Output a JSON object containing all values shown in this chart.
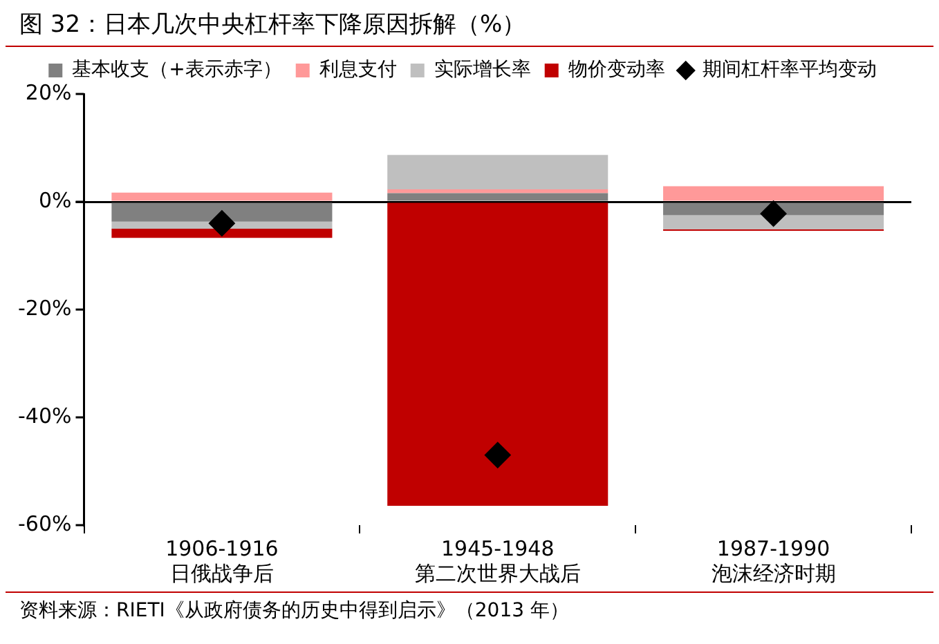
{
  "chart_data": {
    "type": "bar",
    "title": "图 32：日本几次中央杠杆率下降原因拆解（%）",
    "categories": [
      "1906-1916\n日俄战争后",
      "1945-1948\n第二次世界大战后",
      "1987-1990\n泡沫经济时期"
    ],
    "stacked": true,
    "series": [
      {
        "name": "基本收支（+表示赤字）",
        "color": "#808080",
        "values": [
          -3.7,
          1.6,
          -2.5
        ]
      },
      {
        "name": "利息支付",
        "color": "#ff9999",
        "values": [
          1.7,
          0.7,
          2.9
        ]
      },
      {
        "name": "实际增长率",
        "color": "#bfbfbf",
        "values": [
          -1.3,
          6.4,
          -2.6
        ]
      },
      {
        "name": "物价变动率",
        "color": "#c00000",
        "values": [
          -1.7,
          -56.4,
          -0.3
        ]
      },
      {
        "name": "期间杠杆率平均变动",
        "type": "scatter",
        "color": "#000000",
        "marker": "diamond",
        "x": [
          "1906-1916\n日俄战争后",
          "1945-1948\n第二次世界大战后",
          "1987-1990\n泡沫经济时期"
        ],
        "values": [
          -4.0,
          -47,
          -2.2
        ]
      }
    ],
    "ylim": [
      -60,
      20
    ],
    "yticks": [
      {
        "value": -60,
        "label": "-60%"
      },
      {
        "value": -40,
        "label": "-40%"
      },
      {
        "value": -20,
        "label": "-20%"
      },
      {
        "value": 0,
        "label": "0%"
      },
      {
        "value": 20,
        "label": "20%"
      }
    ],
    "legend": "top",
    "annotations": [
      "资料来源：RIETI《从政府债务的历史中得到启示》（2013 年）"
    ]
  }
}
